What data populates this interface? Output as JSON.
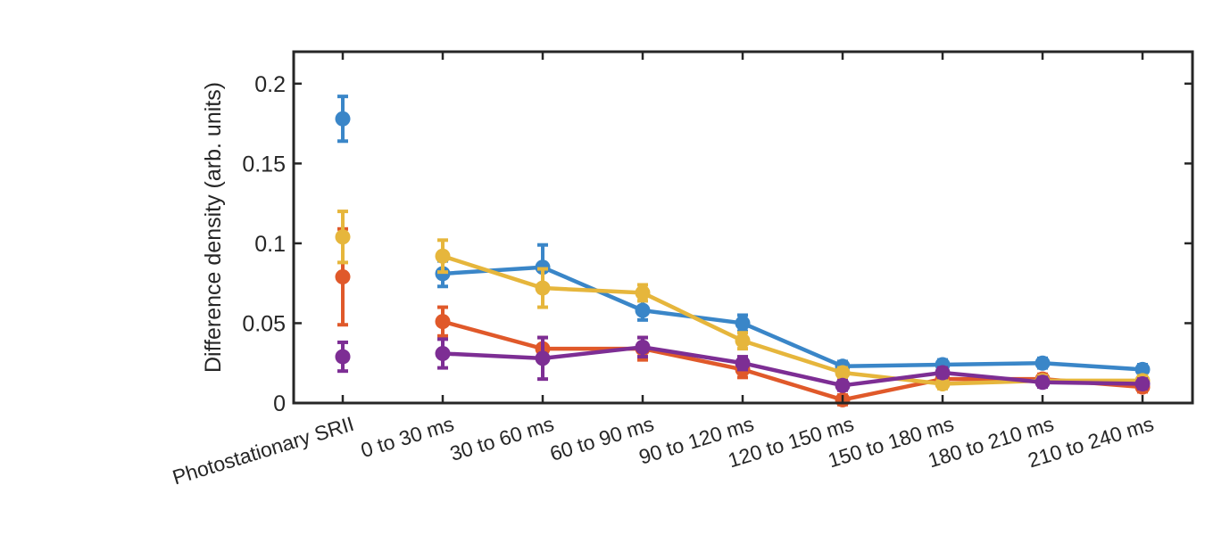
{
  "chart_data": {
    "type": "line",
    "categories": [
      "Photostationary SRII",
      "0 to 30 ms",
      "30 to 60 ms",
      "60 to 90 ms",
      "90 to 120 ms",
      "120 to 150 ms",
      "150 to 180 ms",
      "180 to 210 ms",
      "210 to 240 ms"
    ],
    "ylabel": "Difference density (arb. units)",
    "ylim": [
      0,
      0.22
    ],
    "yticks": [
      0,
      0.05,
      0.1,
      0.15,
      0.2
    ],
    "ytick_labels": [
      "0",
      "0.05",
      "0.1",
      "0.15",
      "0.2"
    ],
    "grid": false,
    "series": [
      {
        "color": "#3a86c8",
        "values": [
          0.178,
          0.081,
          0.085,
          0.058,
          0.05,
          0.023,
          0.024,
          0.025,
          0.021
        ],
        "err": [
          0.014,
          0.008,
          0.014,
          0.006,
          0.005,
          0.003,
          0.003,
          0.003,
          0.003
        ]
      },
      {
        "color": "#e0592a",
        "values": [
          0.079,
          0.051,
          0.034,
          0.034,
          0.021,
          0.002,
          0.015,
          0.015,
          0.01
        ],
        "err": [
          0.03,
          0.009,
          0.007,
          0.007,
          0.005,
          0.003,
          0.004,
          0.003,
          0.003
        ]
      },
      {
        "color": "#e6b63c",
        "values": [
          0.104,
          0.092,
          0.072,
          0.069,
          0.039,
          0.019,
          0.012,
          0.014,
          0.014
        ],
        "err": [
          0.016,
          0.01,
          0.012,
          0.005,
          0.005,
          0.003,
          0.003,
          0.003,
          0.003
        ]
      },
      {
        "color": "#7d2e94",
        "values": [
          0.029,
          0.031,
          0.028,
          0.035,
          0.025,
          0.011,
          0.019,
          0.013,
          0.012
        ],
        "err": [
          0.009,
          0.009,
          0.013,
          0.006,
          0.004,
          0.003,
          0.003,
          0.003,
          0.003
        ]
      }
    ]
  }
}
